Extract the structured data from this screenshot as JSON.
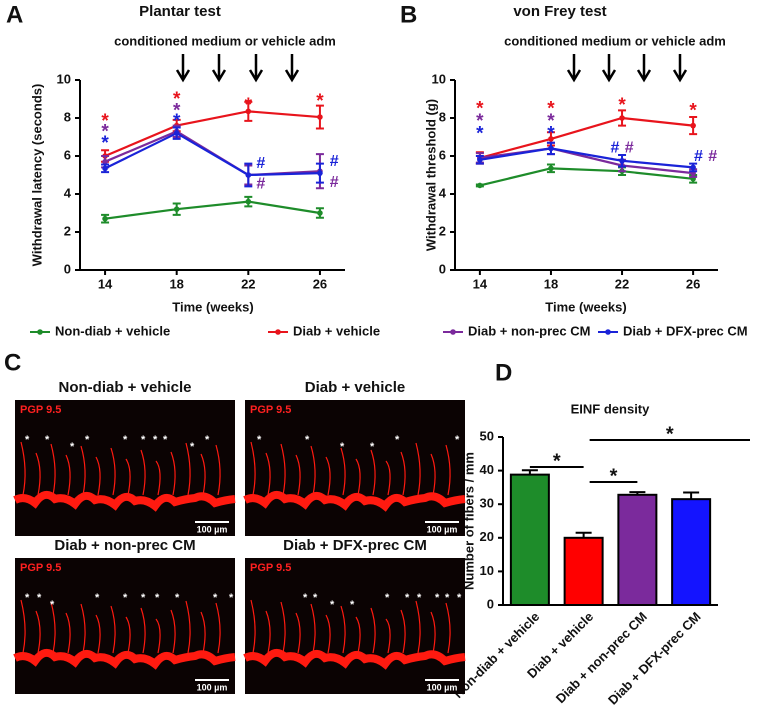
{
  "panel_labels": [
    "A",
    "B",
    "C",
    "D"
  ],
  "legend_position": "bottom",
  "micrographs": [
    {
      "title": "Non-diab + vehicle",
      "stain": "PGP 9.5",
      "scale_bar": "100 µm",
      "marker": "*"
    },
    {
      "title": "Diab + vehicle",
      "stain": "PGP 9.5",
      "scale_bar": "100 µm",
      "marker": "*"
    },
    {
      "title": "Diab + non-prec CM",
      "stain": "PGP 9.5",
      "scale_bar": "100 µm",
      "marker": "*"
    },
    {
      "title": "Diab + DFX-prec CM",
      "stain": "PGP 9.5",
      "scale_bar": "100 µm",
      "marker": "*"
    }
  ],
  "chart_data": [
    {
      "type": "line",
      "title": "Plantar test",
      "annotation": "conditioned medium or vehicle adm",
      "xlabel": "Time (weeks)",
      "ylabel": "Withdrawal latency (seconds)",
      "x": [
        14,
        18,
        22,
        26
      ],
      "xlim": [
        12.6,
        27.4
      ],
      "xticks": [
        14,
        18,
        22,
        26
      ],
      "ylim": [
        0,
        10
      ],
      "yticks": [
        0,
        2,
        4,
        6,
        8,
        10
      ],
      "series": [
        {
          "name": "Non-diab + vehicle",
          "color": "#1e8c2a",
          "values": [
            2.7,
            3.2,
            3.6,
            3.0
          ],
          "errors": [
            0.2,
            0.3,
            0.25,
            0.25
          ]
        },
        {
          "name": "Diab + vehicle",
          "color": "#e8141c",
          "values": [
            6.0,
            7.6,
            8.35,
            8.05
          ],
          "errors": [
            0.3,
            0.3,
            0.5,
            0.6
          ]
        },
        {
          "name": "Diab + non-prec CM",
          "color": "#7b2a9c",
          "values": [
            5.7,
            7.3,
            5.0,
            5.2
          ],
          "errors": [
            0.3,
            0.3,
            0.5,
            0.9
          ]
        },
        {
          "name": "Diab + DFX-prec CM",
          "color": "#1a23d8",
          "values": [
            5.35,
            7.2,
            5.0,
            5.1
          ],
          "errors": [
            0.2,
            0.3,
            0.6,
            0.5
          ]
        }
      ],
      "markers": [
        {
          "text": "*",
          "color": "#e8141c"
        },
        {
          "text": "*",
          "color": "#7b2a9c"
        },
        {
          "text": "*",
          "color": "#1a23d8"
        },
        {
          "text": "*",
          "color": "#e8141c"
        },
        {
          "text": "*",
          "color": "#7b2a9c"
        },
        {
          "text": "*",
          "color": "#1a23d8"
        },
        {
          "text": "*",
          "color": "#e8141c"
        },
        {
          "text": "#",
          "color": "#1a23d8"
        },
        {
          "text": "#",
          "color": "#7b2a9c"
        },
        {
          "text": "*",
          "color": "#e8141c"
        },
        {
          "text": "#",
          "color": "#1a23d8"
        },
        {
          "text": "#",
          "color": "#7b2a9c"
        }
      ]
    },
    {
      "type": "line",
      "title": "von Frey test",
      "annotation": "conditioned medium or vehicle adm",
      "xlabel": "Time (weeks)",
      "ylabel": "Withdrawal threshold (g)",
      "x": [
        14,
        18,
        22,
        26
      ],
      "xlim": [
        12.6,
        27.4
      ],
      "xticks": [
        14,
        18,
        22,
        26
      ],
      "ylim": [
        0,
        10
      ],
      "yticks": [
        0,
        2,
        4,
        6,
        8,
        10
      ],
      "series": [
        {
          "color": "#1e8c2a",
          "values": [
            4.45,
            5.35,
            5.2,
            4.8
          ],
          "errors": [
            0.05,
            0.2,
            0.2,
            0.2
          ]
        },
        {
          "color": "#e8141c",
          "values": [
            5.9,
            6.9,
            8.0,
            7.6
          ],
          "errors": [
            0.3,
            0.35,
            0.4,
            0.45
          ]
        },
        {
          "color": "#7b2a9c",
          "values": [
            5.9,
            6.4,
            5.5,
            5.1
          ],
          "errors": [
            0.25,
            0.3,
            0.3,
            0.2
          ]
        },
        {
          "color": "#1a23d8",
          "values": [
            5.8,
            6.4,
            5.75,
            5.4
          ],
          "errors": [
            0.2,
            0.3,
            0.3,
            0.2
          ]
        }
      ],
      "markers": [
        {
          "text": "*",
          "color": "#e8141c"
        },
        {
          "text": "*",
          "color": "#7b2a9c"
        },
        {
          "text": "*",
          "color": "#1a23d8"
        },
        {
          "text": "*",
          "color": "#e8141c"
        },
        {
          "text": "*",
          "color": "#7b2a9c"
        },
        {
          "text": "*",
          "color": "#1a23d8"
        },
        {
          "text": "*",
          "color": "#e8141c"
        },
        {
          "text": "#",
          "color": "#1a23d8"
        },
        {
          "text": "#",
          "color": "#7b2a9c"
        },
        {
          "text": "*",
          "color": "#e8141c"
        },
        {
          "text": "#",
          "color": "#1a23d8"
        },
        {
          "text": "#",
          "color": "#7b2a9c"
        }
      ]
    },
    {
      "type": "bar",
      "title": "EINF density",
      "ylabel": "Number of fibers / mm",
      "categories": [
        "Non-diab + vehicle",
        "Diab + vehicle",
        "Diab + non-prec CM",
        "Diab + DFX-prec CM"
      ],
      "values": [
        38.8,
        20.0,
        32.8,
        31.5
      ],
      "errors": [
        1.3,
        1.5,
        0.8,
        2.0
      ],
      "colors": [
        "#1e8c2a",
        "#ff0000",
        "#7b2a9c",
        "#1414ff"
      ],
      "ylim": [
        0,
        50
      ],
      "yticks": [
        0,
        10,
        20,
        30,
        40,
        50
      ],
      "markers": [
        {
          "text": "*"
        },
        {
          "text": "*"
        },
        {
          "text": "*"
        }
      ]
    }
  ]
}
